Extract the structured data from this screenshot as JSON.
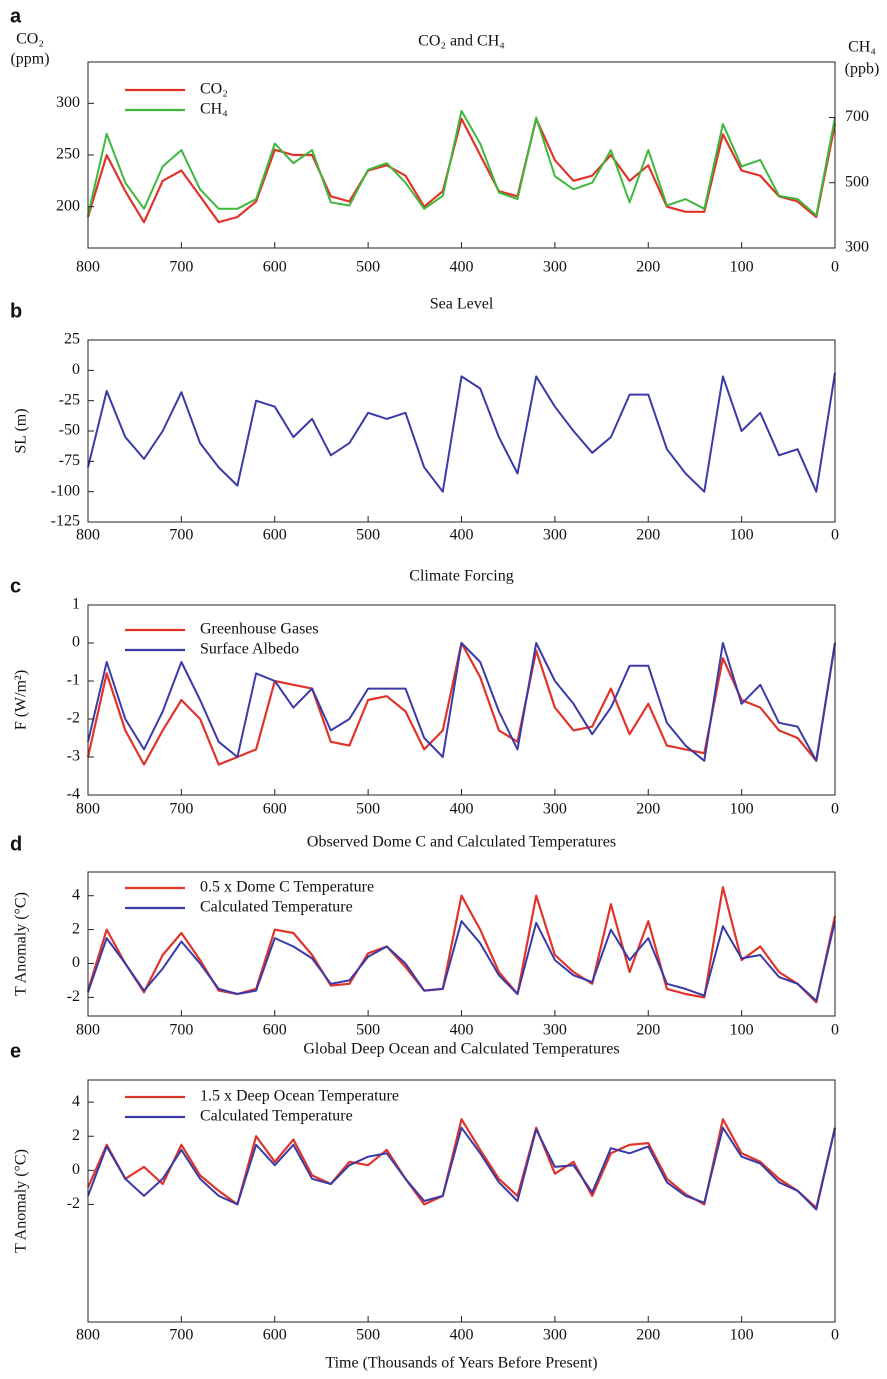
{
  "chart_data": [
    {
      "type": "line",
      "panel": "a",
      "title": "CO₂ and CH₄",
      "ylabel": [
        "CO₂",
        "(ppm)"
      ],
      "y2label": [
        "CH₄",
        "(ppb)"
      ],
      "x": [
        800,
        780,
        760,
        740,
        720,
        700,
        680,
        660,
        640,
        620,
        600,
        580,
        560,
        540,
        520,
        500,
        480,
        460,
        440,
        420,
        400,
        380,
        360,
        340,
        320,
        300,
        280,
        260,
        240,
        220,
        200,
        180,
        160,
        140,
        120,
        100,
        80,
        60,
        40,
        20,
        0
      ],
      "xlim": [
        800,
        0
      ],
      "xticks": [
        800,
        700,
        600,
        500,
        400,
        300,
        200,
        100,
        0
      ],
      "ylim": [
        160,
        340
      ],
      "yticks": [
        200,
        250,
        300
      ],
      "y2lim": [
        300,
        870
      ],
      "y2ticks": [
        300,
        500,
        700
      ],
      "series": [
        {
          "name": "CO₂",
          "color": "#e0342b",
          "values": [
            190,
            250,
            215,
            185,
            225,
            235,
            210,
            185,
            190,
            205,
            255,
            250,
            250,
            210,
            205,
            235,
            240,
            230,
            200,
            215,
            285,
            250,
            215,
            210,
            285,
            245,
            225,
            230,
            250,
            225,
            240,
            200,
            195,
            195,
            270,
            235,
            230,
            210,
            205,
            190,
            280
          ]
        },
        {
          "name": "CH₄",
          "color": "#3cb83c",
          "axis": "y2",
          "values": [
            400,
            650,
            500,
            420,
            550,
            600,
            480,
            420,
            420,
            450,
            620,
            560,
            600,
            440,
            430,
            540,
            560,
            500,
            420,
            460,
            720,
            620,
            470,
            450,
            700,
            520,
            480,
            500,
            600,
            440,
            600,
            430,
            450,
            420,
            680,
            550,
            570,
            460,
            450,
            400,
            700
          ]
        }
      ]
    },
    {
      "type": "line",
      "panel": "b",
      "title": "Sea Level",
      "ylabel": "SL (m)",
      "x": [
        800,
        780,
        760,
        740,
        720,
        700,
        680,
        660,
        640,
        620,
        600,
        580,
        560,
        540,
        520,
        500,
        480,
        460,
        440,
        420,
        400,
        380,
        360,
        340,
        320,
        300,
        280,
        260,
        240,
        220,
        200,
        180,
        160,
        140,
        120,
        100,
        80,
        60,
        40,
        20,
        0
      ],
      "xlim": [
        800,
        0
      ],
      "xticks": [
        800,
        700,
        600,
        500,
        400,
        300,
        200,
        100,
        0
      ],
      "ylim": [
        -125,
        25
      ],
      "yticks": [
        -125,
        -100,
        -75,
        -50,
        -25,
        0,
        25
      ],
      "series": [
        {
          "name": "Sea Level",
          "color": "#3a3aa8",
          "values": [
            -80,
            -17,
            -55,
            -73,
            -50,
            -18,
            -60,
            -80,
            -95,
            -25,
            -30,
            -55,
            -40,
            -70,
            -60,
            -35,
            -40,
            -35,
            -80,
            -100,
            -5,
            -15,
            -55,
            -85,
            -5,
            -30,
            -50,
            -68,
            -55,
            -20,
            -20,
            -65,
            -85,
            -100,
            -5,
            -50,
            -35,
            -70,
            -65,
            -100,
            -2
          ]
        }
      ]
    },
    {
      "type": "line",
      "panel": "c",
      "title": "Climate Forcing",
      "ylabel": "F (W/m²)",
      "x": [
        800,
        780,
        760,
        740,
        720,
        700,
        680,
        660,
        640,
        620,
        600,
        580,
        560,
        540,
        520,
        500,
        480,
        460,
        440,
        420,
        400,
        380,
        360,
        340,
        320,
        300,
        280,
        260,
        240,
        220,
        200,
        180,
        160,
        140,
        120,
        100,
        80,
        60,
        40,
        20,
        0
      ],
      "xlim": [
        800,
        0
      ],
      "xticks": [
        800,
        700,
        600,
        500,
        400,
        300,
        200,
        100,
        0
      ],
      "ylim": [
        -4,
        1
      ],
      "yticks": [
        -4,
        -3,
        -2,
        -1,
        0,
        1
      ],
      "series": [
        {
          "name": "Greenhouse Gases",
          "color": "#e0342b",
          "values": [
            -3,
            -0.8,
            -2.3,
            -3.2,
            -2.3,
            -1.5,
            -2.0,
            -3.2,
            -3.0,
            -2.8,
            -1.0,
            -1.1,
            -1.2,
            -2.6,
            -2.7,
            -1.5,
            -1.4,
            -1.8,
            -2.8,
            -2.3,
            0,
            -0.9,
            -2.3,
            -2.6,
            -0.2,
            -1.7,
            -2.3,
            -2.2,
            -1.2,
            -2.4,
            -1.6,
            -2.7,
            -2.8,
            -2.9,
            -0.4,
            -1.5,
            -1.7,
            -2.3,
            -2.5,
            -3.1,
            0
          ]
        },
        {
          "name": "Surface Albedo",
          "color": "#3a3aa8",
          "values": [
            -2.6,
            -0.5,
            -2.0,
            -2.8,
            -1.8,
            -0.5,
            -1.5,
            -2.6,
            -3.0,
            -0.8,
            -1.0,
            -1.7,
            -1.2,
            -2.3,
            -2.0,
            -1.2,
            -1.2,
            -1.2,
            -2.5,
            -3.0,
            0,
            -0.5,
            -1.8,
            -2.8,
            0,
            -1.0,
            -1.6,
            -2.4,
            -1.7,
            -0.6,
            -0.6,
            -2.1,
            -2.7,
            -3.1,
            0,
            -1.6,
            -1.1,
            -2.1,
            -2.2,
            -3.1,
            0
          ]
        }
      ]
    },
    {
      "type": "line",
      "panel": "d",
      "title": "Observed Dome C and Calculated Temperatures",
      "ylabel": "T Anomaly (°C)",
      "x": [
        800,
        780,
        760,
        740,
        720,
        700,
        680,
        660,
        640,
        620,
        600,
        580,
        560,
        540,
        520,
        500,
        480,
        460,
        440,
        420,
        400,
        380,
        360,
        340,
        320,
        300,
        280,
        260,
        240,
        220,
        200,
        180,
        160,
        140,
        120,
        100,
        80,
        60,
        40,
        20,
        0
      ],
      "xlim": [
        800,
        0
      ],
      "xticks": [
        800,
        700,
        600,
        500,
        400,
        300,
        200,
        100,
        0
      ],
      "ylim": [
        -3.1,
        5.4
      ],
      "yticks": [
        -2,
        0,
        2,
        4
      ],
      "series": [
        {
          "name": "0.5 x Dome C Temperature",
          "color": "#e0342b",
          "values": [
            -1.6,
            2.0,
            0,
            -1.7,
            0.5,
            1.8,
            0.2,
            -1.6,
            -1.8,
            -1.5,
            2.0,
            1.8,
            0.5,
            -1.3,
            -1.2,
            0.6,
            1.0,
            -0.2,
            -1.6,
            -1.5,
            4.0,
            2.0,
            -0.5,
            -1.8,
            4.0,
            0.5,
            -0.5,
            -1.2,
            3.5,
            -0.5,
            2.5,
            -1.5,
            -1.8,
            -2.0,
            4.5,
            0.2,
            1.0,
            -0.5,
            -1.2,
            -2.3,
            2.8
          ]
        },
        {
          "name": "Calculated Temperature",
          "color": "#3a3aa8",
          "values": [
            -1.7,
            1.5,
            0,
            -1.6,
            -0.3,
            1.3,
            0,
            -1.5,
            -1.8,
            -1.6,
            1.5,
            1.0,
            0.3,
            -1.2,
            -1.0,
            0.4,
            1.0,
            0,
            -1.6,
            -1.5,
            2.5,
            1.2,
            -0.7,
            -1.8,
            2.4,
            0.2,
            -0.7,
            -1.1,
            2.0,
            0.2,
            1.5,
            -1.2,
            -1.5,
            -1.9,
            2.2,
            0.3,
            0.5,
            -0.8,
            -1.2,
            -2.2,
            2.5
          ]
        }
      ]
    },
    {
      "type": "line",
      "panel": "e",
      "title": "Global Deep Ocean and Calculated Temperatures",
      "ylabel": "T Anomaly (°C)",
      "xlabel": "Time (Thousands of Years Before Present)",
      "x": [
        800,
        780,
        760,
        740,
        720,
        700,
        680,
        660,
        640,
        620,
        600,
        580,
        560,
        540,
        520,
        500,
        480,
        460,
        440,
        420,
        400,
        380,
        360,
        340,
        320,
        300,
        280,
        260,
        240,
        220,
        200,
        180,
        160,
        140,
        120,
        100,
        80,
        60,
        40,
        20,
        0
      ],
      "xlim": [
        800,
        0
      ],
      "xticks": [
        800,
        700,
        600,
        500,
        400,
        300,
        200,
        100,
        0
      ],
      "ylim": [
        -8.9,
        5.3
      ],
      "yticks": [
        -2,
        0,
        2,
        4
      ],
      "series": [
        {
          "name": "1.5 x Deep Ocean Temperature",
          "color": "#e0342b",
          "values": [
            -1.0,
            1.5,
            -0.5,
            0.2,
            -0.8,
            1.5,
            -0.3,
            -1.2,
            -2.0,
            2.0,
            0.5,
            1.8,
            -0.3,
            -0.8,
            0.5,
            0.3,
            1.2,
            -0.5,
            -2.0,
            -1.5,
            3.0,
            1.2,
            -0.5,
            -1.5,
            2.5,
            -0.2,
            0.5,
            -1.5,
            1.0,
            1.5,
            1.6,
            -0.5,
            -1.4,
            -2.0,
            3.0,
            1.0,
            0.5,
            -0.5,
            -1.2,
            -2.2,
            2.5
          ]
        },
        {
          "name": "Calculated Temperature",
          "color": "#3a3aa8",
          "values": [
            -1.5,
            1.4,
            -0.5,
            -1.5,
            -0.5,
            1.2,
            -0.5,
            -1.5,
            -2.0,
            1.5,
            0.3,
            1.5,
            -0.5,
            -0.8,
            0.3,
            0.8,
            1.0,
            -0.5,
            -1.8,
            -1.5,
            2.5,
            1.0,
            -0.7,
            -1.8,
            2.4,
            0.2,
            0.3,
            -1.3,
            1.3,
            1.0,
            1.4,
            -0.7,
            -1.5,
            -1.9,
            2.5,
            0.8,
            0.4,
            -0.7,
            -1.2,
            -2.3,
            2.5
          ]
        }
      ]
    }
  ]
}
